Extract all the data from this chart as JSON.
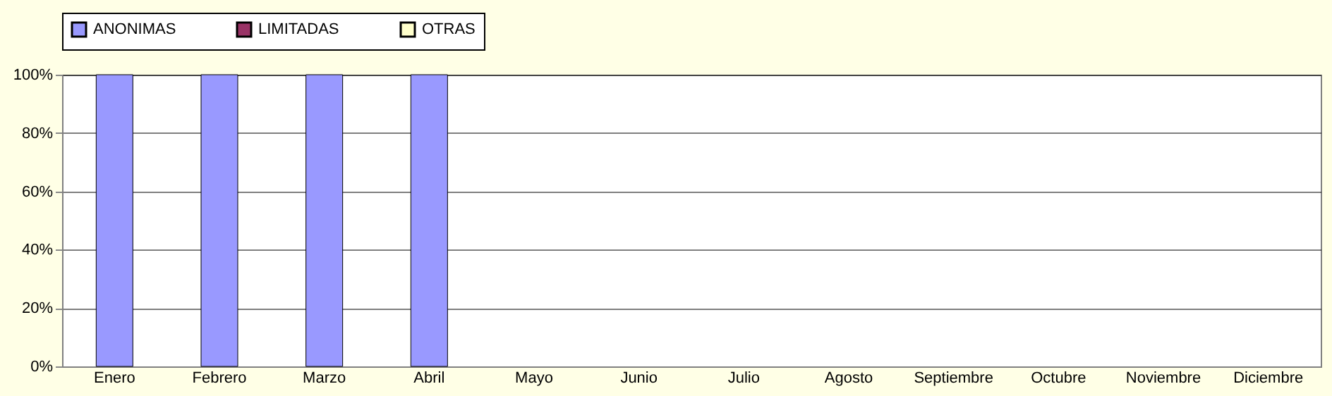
{
  "chart_data": {
    "type": "bar",
    "stacked": true,
    "categories": [
      "Enero",
      "Febrero",
      "Marzo",
      "Abril",
      "Mayo",
      "Junio",
      "Julio",
      "Agosto",
      "Septiembre",
      "Octubre",
      "Noviembre",
      "Diciembre"
    ],
    "series": [
      {
        "name": "ANONIMAS",
        "color": "#9999ff",
        "values": [
          100,
          100,
          100,
          100,
          0,
          0,
          0,
          0,
          0,
          0,
          0,
          0
        ]
      },
      {
        "name": "LIMITADAS",
        "color": "#993366",
        "values": [
          0,
          0,
          0,
          0,
          0,
          0,
          0,
          0,
          0,
          0,
          0,
          0
        ]
      },
      {
        "name": "OTRAS",
        "color": "#ffffcc",
        "values": [
          0,
          0,
          0,
          0,
          0,
          0,
          0,
          0,
          0,
          0,
          0,
          0
        ]
      }
    ],
    "ylim": [
      0,
      100
    ],
    "yticks": [
      {
        "value": 0,
        "label": "0%"
      },
      {
        "value": 20,
        "label": "20%"
      },
      {
        "value": 40,
        "label": "40%"
      },
      {
        "value": 60,
        "label": "60%"
      },
      {
        "value": 80,
        "label": "80%"
      },
      {
        "value": 100,
        "label": "100%"
      }
    ],
    "grid": "y",
    "legend": "top"
  }
}
